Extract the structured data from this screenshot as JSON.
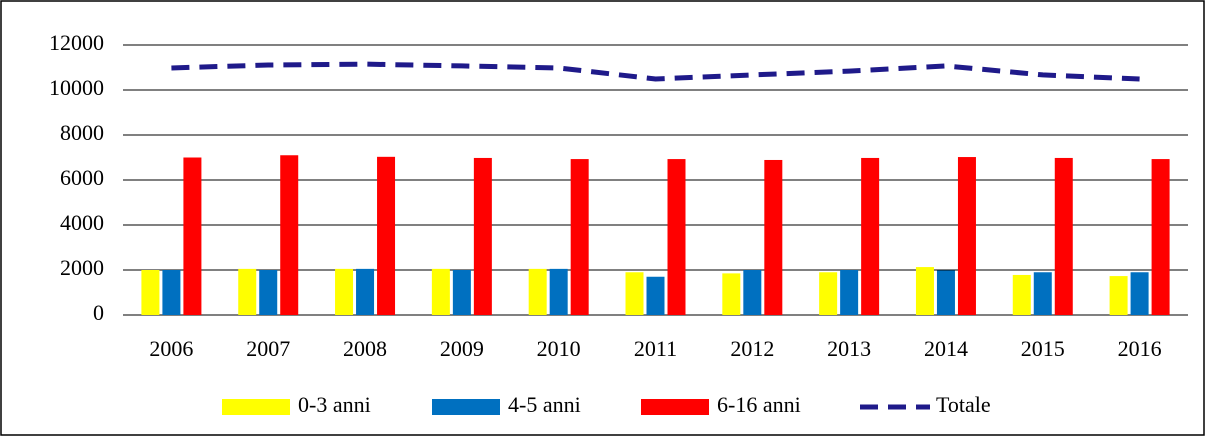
{
  "chart_data": {
    "type": "bar",
    "categories": [
      "2006",
      "2007",
      "2008",
      "2009",
      "2010",
      "2011",
      "2012",
      "2013",
      "2014",
      "2015",
      "2016"
    ],
    "series": [
      {
        "name": "0-3 anni",
        "color": "#ffff00",
        "values": [
          2000,
          2050,
          2050,
          2050,
          2050,
          1900,
          1850,
          1900,
          2130,
          1780,
          1730
        ]
      },
      {
        "name": "4-5 anni",
        "color": "#0070c0",
        "values": [
          2000,
          2000,
          2050,
          2000,
          2050,
          1700,
          2000,
          2000,
          1980,
          1900,
          1900
        ]
      },
      {
        "name": "6-16 anni",
        "color": "#ff0000",
        "values": [
          7000,
          7100,
          7030,
          6980,
          6930,
          6930,
          6890,
          6980,
          7020,
          6980,
          6930
        ]
      },
      {
        "name": "Totale",
        "type": "line",
        "color": "#1f1a8a",
        "values": [
          10980,
          11110,
          11150,
          11070,
          10980,
          10490,
          10670,
          10840,
          11070,
          10670,
          10490
        ]
      }
    ],
    "ylim": [
      0,
      12000
    ],
    "yticks": [
      0,
      2000,
      4000,
      6000,
      8000,
      10000,
      12000
    ],
    "grid": true,
    "legend": "bottom"
  }
}
